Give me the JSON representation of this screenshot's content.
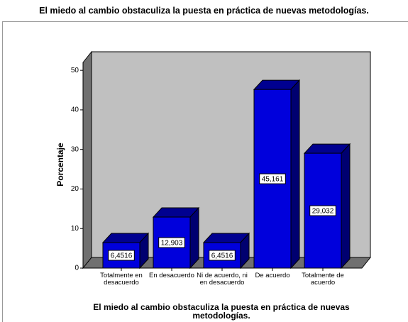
{
  "chart_data": {
    "type": "bar3d",
    "title": "El miedo al cambio obstaculiza la puesta en práctica de nuevas metodologías.",
    "x_label": "El miedo al cambio obstaculiza la puesta en práctica de nuevas metodologías.",
    "y_label": "Porcentaje",
    "categories": [
      "Totalmente en desacuerdo",
      "En desacuerdo",
      "Ni de acuerdo, ni en desacuerdo",
      "De acuerdo",
      "Totalmente de acuerdo"
    ],
    "values": [
      6.4516,
      12.903,
      6.4516,
      45.161,
      29.032
    ],
    "value_labels": [
      "6,4516",
      "12,903",
      "6,4516",
      "45,161",
      "29,032"
    ],
    "color": "#0000dc",
    "ylim": [
      0,
      52
    ],
    "yticks": [
      0,
      10,
      20,
      30,
      40,
      50
    ]
  }
}
